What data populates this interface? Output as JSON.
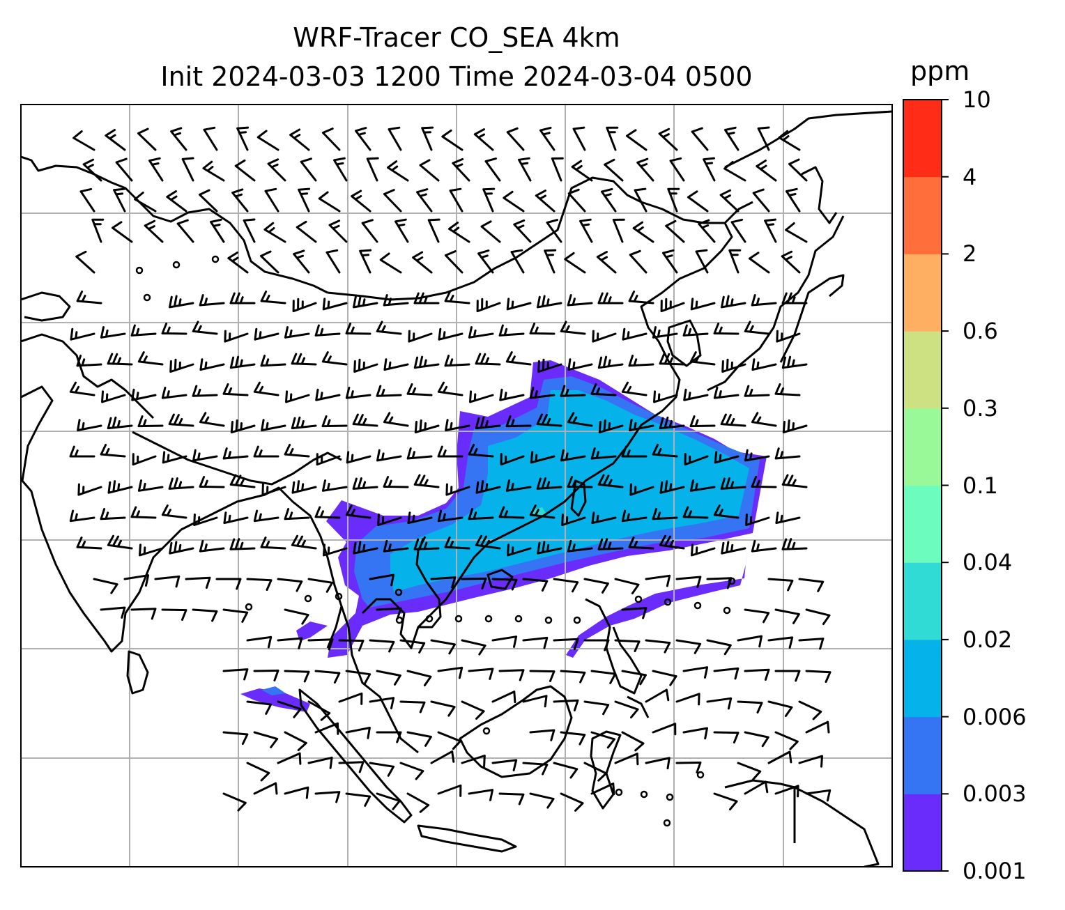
{
  "title": {
    "line1": "WRF-Tracer CO_SEA 4km",
    "line2": "Init 2024-03-03 1200 Time 2024-03-04 0500"
  },
  "colorbar": {
    "unit": "ppm",
    "levels": [
      "0.001",
      "0.003",
      "0.006",
      "0.02",
      "0.04",
      "0.1",
      "0.3",
      "0.6",
      "2",
      "4",
      "10"
    ],
    "colors": [
      "#6a2cfb",
      "#3574f3",
      "#06b2ea",
      "#2fdbd4",
      "#6cfcbe",
      "#99f898",
      "#cde183",
      "#ffaf61",
      "#ff6e3b",
      "#ff2c17"
    ]
  },
  "map": {
    "colors": {
      "coastline": "#000000",
      "grid": "#b0b0b0",
      "frame": "#000000"
    }
  }
}
